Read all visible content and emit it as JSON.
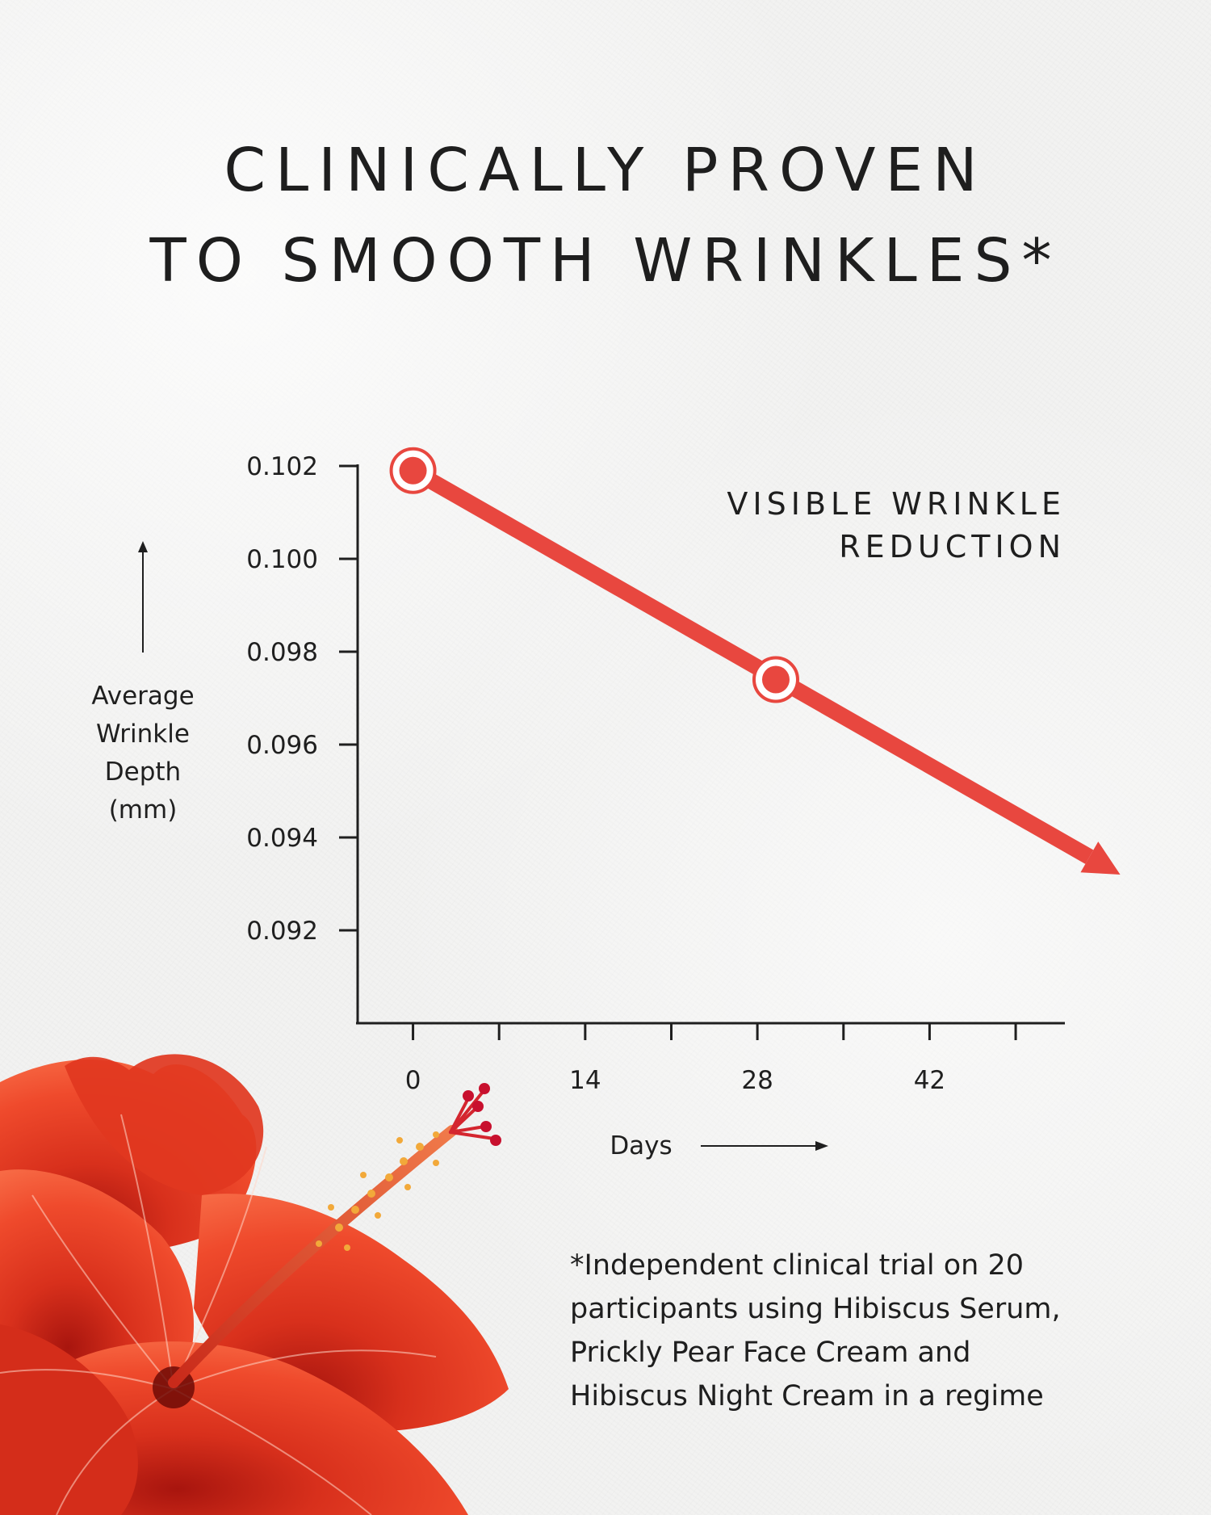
{
  "headline": {
    "line1": "CLINICALLY PROVEN",
    "line2": "TO SMOOTH WRINKLES*"
  },
  "chart_data": {
    "type": "line",
    "title": "",
    "xlabel": "Days",
    "ylabel_lines": [
      "Average",
      "Wrinkle",
      "Depth",
      "(mm)"
    ],
    "x_ticks": [
      0,
      14,
      28,
      42
    ],
    "y_ticks": [
      "0.102",
      "0.100",
      "0.098",
      "0.096",
      "0.094",
      "0.092"
    ],
    "xlim": [
      -4.5,
      53
    ],
    "ylim": [
      0.09,
      0.102
    ],
    "series": [
      {
        "color": "#e8473f",
        "points": [
          {
            "x": 0,
            "y": 0.1019
          },
          {
            "x": 29.5,
            "y": 0.0974
          }
        ]
      }
    ],
    "trend_end": {
      "x": 57.5,
      "y": 0.0932
    },
    "annotation_lines": [
      "VISIBLE WRINKLE",
      "REDUCTION"
    ],
    "grid": false
  },
  "footnote": {
    "lines": [
      "*Independent clinical trial on 20",
      "participants using Hibiscus Serum,",
      "Prickly Pear Face Cream and",
      "Hibiscus Night Cream in a regime"
    ]
  },
  "illustration": {
    "name": "red hibiscus flower",
    "color": "#e23a22"
  }
}
